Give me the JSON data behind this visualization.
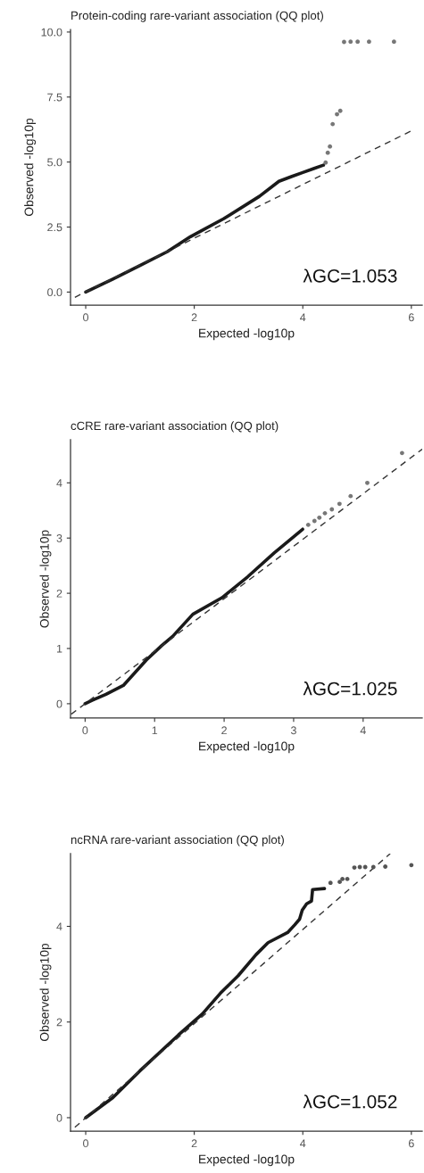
{
  "chart_data": [
    {
      "type": "line",
      "title": "Protein-coding rare-variant association (QQ plot)",
      "xlabel": "Expected -log10p",
      "ylabel": "Observed -log10p",
      "xlim": [
        -0.28,
        6.2
      ],
      "ylim": [
        -0.5,
        10.1
      ],
      "xticks": [
        0,
        2,
        4,
        6
      ],
      "yticks": [
        {
          "value": 0,
          "label": "0.0"
        },
        {
          "value": 2.5,
          "label": "2.5"
        },
        {
          "value": 5,
          "label": "5.0"
        },
        {
          "value": 7.5,
          "label": "7.5"
        },
        {
          "value": 10,
          "label": "10.0"
        }
      ],
      "grid": false,
      "legend": false,
      "annotations": [
        "λGC=1.053"
      ],
      "series": [
        {
          "type": "line",
          "color": "#1a1a1a",
          "line_style": "solid",
          "x": [
            0,
            0.5,
            1,
            1.5,
            1.93,
            2.54,
            3.2,
            3.56,
            3.8,
            4.0,
            4.2,
            4.38
          ],
          "values": [
            0,
            0.5,
            1.02,
            1.55,
            2.13,
            2.82,
            3.68,
            4.26,
            4.45,
            4.6,
            4.75,
            4.88
          ]
        },
        {
          "type": "scatter",
          "color": "#777777",
          "marker": "circle",
          "x": [
            4.42,
            4.46,
            4.5,
            4.55,
            4.63,
            4.69,
            4.76,
            4.88,
            5.01,
            5.22,
            5.68
          ],
          "values": [
            4.98,
            5.36,
            5.6,
            6.46,
            6.84,
            6.97,
            9.62,
            9.63,
            9.63,
            9.63,
            9.63
          ]
        },
        {
          "type": "line",
          "color": "#333333",
          "line_style": "dashed",
          "x": [
            -0.2,
            6.0
          ],
          "values": [
            -0.2,
            6.2
          ]
        }
      ]
    },
    {
      "type": "line",
      "title": "cCRE rare-variant association (QQ plot)",
      "xlabel": "Expected -log10p",
      "ylabel": "Observed -log10p",
      "xlim": [
        -0.21,
        4.85
      ],
      "ylim": [
        -0.26,
        4.78
      ],
      "xticks": [
        0,
        1,
        2,
        3,
        4
      ],
      "yticks": [
        0,
        1,
        2,
        3,
        4
      ],
      "grid": false,
      "legend": false,
      "annotations": [
        "λGC=1.025"
      ],
      "series": [
        {
          "type": "line",
          "color": "#1a1a1a",
          "line_style": "solid",
          "x": [
            0,
            0.1,
            0.3,
            0.55,
            0.88,
            1.1,
            1.26,
            1.55,
            1.97,
            2.34,
            2.72,
            3.13
          ],
          "values": [
            0,
            0.06,
            0.17,
            0.33,
            0.79,
            1.05,
            1.22,
            1.62,
            1.92,
            2.3,
            2.73,
            3.16
          ]
        },
        {
          "type": "scatter",
          "color": "#777777",
          "marker": "circle",
          "x": [
            3.21,
            3.3,
            3.37,
            3.45,
            3.55,
            3.66,
            3.82,
            4.06,
            4.56
          ],
          "values": [
            3.24,
            3.31,
            3.37,
            3.45,
            3.52,
            3.62,
            3.76,
            4.0,
            4.54
          ]
        },
        {
          "type": "line",
          "color": "#333333",
          "line_style": "dashed",
          "x": [
            -0.2,
            4.85
          ],
          "values": [
            -0.19,
            4.61
          ]
        }
      ]
    },
    {
      "type": "line",
      "title": "ncRNA rare-variant association (QQ plot)",
      "xlabel": "Expected -log10p",
      "ylabel": "Observed -log10p",
      "xlim": [
        -0.28,
        6.2
      ],
      "ylim": [
        -0.28,
        5.52
      ],
      "xticks": [
        0,
        2,
        4,
        6
      ],
      "yticks": [
        0,
        2,
        4
      ],
      "grid": false,
      "legend": false,
      "annotations": [
        "λGC=1.052"
      ],
      "series": [
        {
          "type": "line",
          "color": "#1a1a1a",
          "line_style": "solid",
          "x": [
            0,
            0.5,
            1.0,
            1.71,
            2.15,
            2.48,
            2.81,
            3.14,
            3.36,
            3.72,
            3.85,
            3.94,
            3.99,
            4.07,
            4.16,
            4.18,
            4.4
          ],
          "values": [
            0,
            0.42,
            0.98,
            1.73,
            2.17,
            2.6,
            2.97,
            3.41,
            3.66,
            3.87,
            4.03,
            4.15,
            4.34,
            4.47,
            4.53,
            4.77,
            4.79
          ]
        },
        {
          "type": "scatter",
          "color": "#555555",
          "marker": "circle",
          "x": [
            4.51,
            4.68,
            4.73,
            4.82,
            4.95,
            5.05,
            5.15,
            5.3,
            5.52,
            6.0
          ],
          "values": [
            4.91,
            4.93,
            4.99,
            4.99,
            5.23,
            5.24,
            5.24,
            5.24,
            5.25,
            5.28
          ]
        },
        {
          "type": "line",
          "color": "#333333",
          "line_style": "dashed",
          "x": [
            -0.2,
            5.61
          ],
          "values": [
            -0.2,
            5.52
          ]
        }
      ]
    }
  ]
}
